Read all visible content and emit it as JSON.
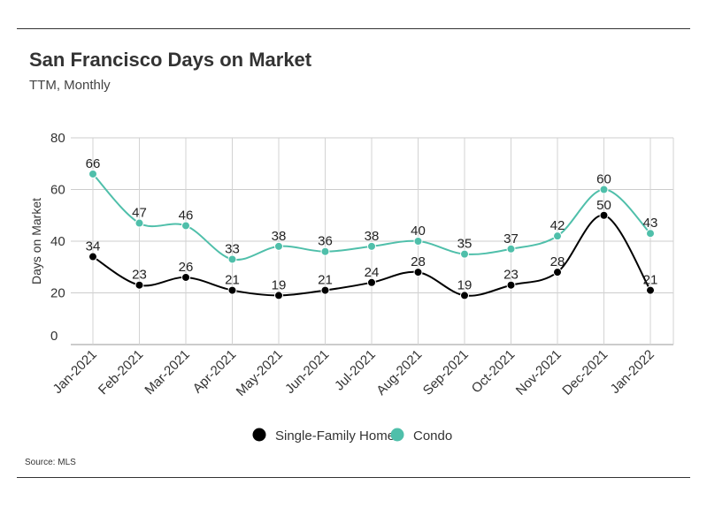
{
  "header": {
    "title": "San Francisco Days on Market",
    "subtitle": "TTM, Monthly"
  },
  "footer": {
    "source": "Source: MLS"
  },
  "chart_data": {
    "type": "line",
    "title": "San Francisco Days on Market",
    "subtitle": "TTM, Monthly",
    "xlabel": "",
    "ylabel": "Days on Market",
    "ylim": [
      0,
      80
    ],
    "yticks": [
      0,
      20,
      40,
      60,
      80
    ],
    "grid": true,
    "legend_position": "bottom",
    "categories": [
      "Jan-2021",
      "Feb-2021",
      "Mar-2021",
      "Apr-2021",
      "May-2021",
      "Jun-2021",
      "Jul-2021",
      "Aug-2021",
      "Sep-2021",
      "Oct-2021",
      "Nov-2021",
      "Dec-2021",
      "Jan-2022"
    ],
    "series": [
      {
        "name": "Single-Family Home",
        "color": "#000000",
        "values": [
          34,
          23,
          26,
          21,
          19,
          21,
          24,
          28,
          19,
          23,
          28,
          50,
          21
        ]
      },
      {
        "name": "Condo",
        "color": "#4fbfaa",
        "values": [
          66,
          47,
          46,
          33,
          38,
          36,
          38,
          40,
          35,
          37,
          42,
          60,
          43
        ]
      }
    ]
  }
}
